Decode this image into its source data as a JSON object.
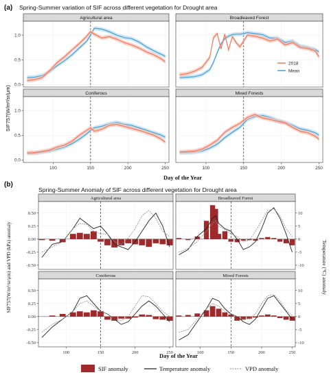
{
  "figure": {
    "panel_a_letter": "(a)",
    "panel_b_letter": "(b)"
  },
  "chart_data": [
    {
      "type": "line",
      "title": "Spring-Summer variation of SIF across different vegetation for Drought area",
      "xlabel": "Day of the Year",
      "ylabel": "SIF757(W/m²/sr/μm)",
      "xlim": [
        60,
        255
      ],
      "ylim": [
        -0.05,
        1.28
      ],
      "xticks": [
        100,
        150,
        200,
        250
      ],
      "yticks": [
        0.0,
        0.5,
        1.0
      ],
      "vline_x": 150,
      "grid": true,
      "legend": {
        "placement": "inside-right of Broadleaved Forest panel",
        "entries": [
          "2018",
          "Mean"
        ]
      },
      "colors": {
        "2018": "#ef7a5e",
        "Mean": "#4b9fd0",
        "band_2018": "#f7c2b4",
        "band_Mean": "#b8dcf0"
      },
      "facets": [
        {
          "name": "Agricultural area",
          "x": [
            65,
            75,
            85,
            95,
            105,
            115,
            125,
            135,
            145,
            150,
            155,
            165,
            175,
            185,
            195,
            205,
            215,
            225,
            235,
            245,
            250
          ],
          "series": [
            {
              "name": "2018",
              "values": [
                0.08,
                0.1,
                0.14,
                0.28,
                0.44,
                0.56,
                0.7,
                0.83,
                0.98,
                1.07,
                1.02,
                0.94,
                0.97,
                0.92,
                0.85,
                0.8,
                0.74,
                0.66,
                0.6,
                0.52,
                0.46
              ]
            },
            {
              "name": "Mean",
              "values": [
                0.14,
                0.15,
                0.18,
                0.26,
                0.38,
                0.48,
                0.6,
                0.74,
                0.88,
                1.0,
                1.14,
                1.12,
                1.07,
                1.0,
                0.95,
                0.93,
                0.86,
                0.76,
                0.68,
                0.61,
                0.57
              ]
            }
          ]
        },
        {
          "name": "Broadleaved Forest",
          "x": [
            65,
            75,
            85,
            95,
            105,
            110,
            115,
            120,
            125,
            130,
            135,
            140,
            145,
            150,
            155,
            165,
            175,
            185,
            195,
            205,
            215,
            225,
            235,
            245,
            250
          ],
          "series": [
            {
              "name": "2018",
              "values": [
                0.2,
                0.22,
                0.27,
                0.35,
                0.55,
                0.95,
                1.03,
                0.72,
                1.02,
                0.7,
                0.97,
                0.85,
                0.76,
                0.88,
                1.0,
                0.98,
                0.94,
                0.88,
                0.92,
                0.8,
                0.85,
                0.75,
                0.73,
                0.68,
                0.56
              ]
            },
            {
              "name": "Mean",
              "values": [
                0.14,
                0.15,
                0.16,
                0.2,
                0.3,
                0.45,
                0.65,
                0.82,
                0.93,
                0.98,
                1.01,
                1.02,
                1.02,
                1.03,
                1.05,
                1.03,
                1.01,
                0.94,
                0.94,
                0.85,
                0.88,
                0.78,
                0.75,
                0.71,
                0.66
              ]
            }
          ]
        },
        {
          "name": "Coniferous",
          "x": [
            65,
            75,
            85,
            95,
            105,
            115,
            125,
            135,
            145,
            150,
            155,
            165,
            175,
            185,
            195,
            205,
            215,
            225,
            235,
            245,
            250
          ],
          "series": [
            {
              "name": "2018",
              "values": [
                0.14,
                0.15,
                0.17,
                0.2,
                0.26,
                0.3,
                0.38,
                0.5,
                0.6,
                0.65,
                0.58,
                0.62,
                0.7,
                0.72,
                0.68,
                0.64,
                0.6,
                0.55,
                0.5,
                0.42,
                0.36
              ]
            },
            {
              "name": "Mean",
              "values": [
                0.14,
                0.14,
                0.16,
                0.18,
                0.22,
                0.26,
                0.33,
                0.42,
                0.53,
                0.6,
                0.65,
                0.68,
                0.73,
                0.76,
                0.72,
                0.7,
                0.65,
                0.6,
                0.55,
                0.5,
                0.46
              ]
            }
          ]
        },
        {
          "name": "Mixed Forests",
          "x": [
            65,
            75,
            85,
            95,
            105,
            115,
            125,
            135,
            145,
            150,
            155,
            165,
            175,
            185,
            195,
            205,
            215,
            225,
            235,
            245,
            250
          ],
          "series": [
            {
              "name": "2018",
              "values": [
                0.16,
                0.17,
                0.18,
                0.22,
                0.3,
                0.4,
                0.56,
                0.66,
                0.74,
                0.8,
                0.86,
                0.92,
                0.85,
                0.82,
                0.78,
                0.75,
                0.66,
                0.58,
                0.55,
                0.48,
                0.42
              ]
            },
            {
              "name": "Mean",
              "values": [
                0.15,
                0.15,
                0.16,
                0.18,
                0.24,
                0.32,
                0.45,
                0.56,
                0.66,
                0.74,
                0.82,
                0.88,
                0.9,
                0.86,
                0.8,
                0.76,
                0.7,
                0.63,
                0.6,
                0.55,
                0.5
              ]
            }
          ]
        }
      ]
    },
    {
      "type": "bar",
      "title": "Spring-Summer Anomaly of SIF across different vegetation for Drought area",
      "xlabel": "Day of the Year",
      "ylabel": "SIF757(W/m²/sr/μm) and VPD (kPa) anomaly",
      "y2label": "Temperature (°C) anomaly",
      "xlim": [
        60,
        255
      ],
      "ylim": [
        -0.58,
        0.72
      ],
      "y2lim": [
        -11.6,
        14.4
      ],
      "xticks": [
        100,
        150,
        200,
        250
      ],
      "yticks": [
        -0.5,
        -0.25,
        0.0,
        0.25,
        0.5
      ],
      "y2ticks": [
        -10,
        -5,
        0,
        5,
        10
      ],
      "vline_x": 150,
      "grid": true,
      "legend": {
        "placement": "bottom",
        "entries": [
          "SIF anomaly",
          "Temperature anomaly",
          "VPD anomaly"
        ]
      },
      "colors": {
        "SIF anomaly": "#9e2a2b",
        "Temperature anomaly": "#222222",
        "VPD anomaly": "#8a8a8a"
      },
      "facets": [
        {
          "name": "Agricultural area",
          "x": [
            65,
            80,
            95,
            110,
            120,
            130,
            140,
            150,
            160,
            170,
            180,
            190,
            200,
            210,
            220,
            230,
            240,
            250
          ],
          "series": [
            {
              "name": "SIF anomaly",
              "values": [
                -0.02,
                -0.03,
                -0.06,
                0.1,
                0.12,
                0.1,
                0.15,
                -0.05,
                -0.12,
                -0.16,
                -0.12,
                -0.08,
                -0.1,
                -0.12,
                -0.15,
                -0.08,
                -0.1,
                -0.12
              ]
            },
            {
              "name": "Temperature anomaly",
              "values": [
                -7,
                -2,
                -1,
                4,
                8,
                6,
                4,
                5,
                2,
                -2,
                -3,
                -4,
                -1,
                3,
                7,
                10,
                5,
                -3
              ]
            },
            {
              "name": "VPD anomaly",
              "values": [
                -0.25,
                -0.15,
                -0.05,
                0.2,
                0.3,
                0.28,
                0.15,
                0.1,
                0.1,
                -0.05,
                -0.1,
                0.02,
                0.2,
                0.45,
                0.55,
                0.4,
                0.15,
                0.05
              ]
            }
          ]
        },
        {
          "name": "Broadleaved Forest",
          "x": [
            65,
            80,
            95,
            110,
            120,
            125,
            130,
            140,
            150,
            160,
            170,
            180,
            190,
            200,
            210,
            220,
            230,
            240,
            250
          ],
          "series": [
            {
              "name": "SIF anomaly",
              "values": [
                0.02,
                -0.02,
                0.05,
                0.35,
                0.65,
                0.58,
                0.1,
                0.15,
                -0.05,
                -0.06,
                -0.03,
                -0.02,
                -0.03,
                0.02,
                0.04,
                0.02,
                -0.05,
                -0.08,
                -0.12
              ]
            },
            {
              "name": "Temperature anomaly",
              "values": [
                -6,
                -4,
                1,
                4,
                8,
                9,
                6,
                4,
                3,
                0,
                -4,
                -3,
                -1,
                4,
                10,
                12,
                8,
                2,
                -5
              ]
            },
            {
              "name": "VPD anomaly",
              "values": [
                -0.25,
                -0.18,
                -0.05,
                0.15,
                0.3,
                0.35,
                0.25,
                0.18,
                0.1,
                0.05,
                -0.05,
                -0.02,
                0.15,
                0.35,
                0.55,
                0.58,
                0.45,
                0.2,
                0.05
              ]
            }
          ]
        },
        {
          "name": "Coniferous",
          "x": [
            65,
            80,
            95,
            110,
            120,
            130,
            140,
            150,
            160,
            170,
            180,
            190,
            200,
            210,
            220,
            230,
            240,
            250
          ],
          "series": [
            {
              "name": "SIF anomaly",
              "values": [
                0.0,
                0.02,
                0.05,
                0.08,
                0.1,
                0.08,
                0.12,
                0.1,
                -0.06,
                -0.08,
                -0.04,
                -0.04,
                -0.02,
                0.04,
                0.03,
                -0.05,
                -0.06,
                -0.08
              ]
            },
            {
              "name": "Temperature anomaly",
              "values": [
                -8,
                -4,
                -1,
                2,
                7,
                8,
                5,
                2,
                1,
                -1,
                -3,
                -2,
                1,
                4,
                6,
                4,
                1,
                -2
              ]
            },
            {
              "name": "VPD anomaly",
              "values": [
                -0.3,
                -0.15,
                -0.05,
                0.1,
                0.25,
                0.3,
                0.2,
                0.1,
                0.05,
                -0.05,
                -0.08,
                0.0,
                0.2,
                0.4,
                0.38,
                0.25,
                0.1,
                0.0
              ]
            }
          ]
        },
        {
          "name": "Mixed Forests",
          "x": [
            65,
            80,
            95,
            110,
            120,
            130,
            140,
            150,
            160,
            170,
            180,
            190,
            200,
            210,
            220,
            230,
            240,
            250
          ],
          "series": [
            {
              "name": "SIF anomaly",
              "values": [
                0.02,
                0.03,
                0.06,
                0.12,
                0.2,
                0.15,
                0.08,
                0.04,
                -0.08,
                -0.06,
                -0.04,
                -0.02,
                0.02,
                0.04,
                0.02,
                -0.03,
                -0.06,
                -0.08
              ]
            },
            {
              "name": "Temperature anomaly",
              "values": [
                -9,
                -7,
                -2,
                3,
                7,
                6,
                3,
                1,
                0,
                -2,
                -3,
                -1,
                3,
                7,
                8,
                5,
                2,
                -1
              ]
            },
            {
              "name": "VPD anomaly",
              "values": [
                -0.3,
                -0.25,
                -0.05,
                0.15,
                0.25,
                0.2,
                0.1,
                0.05,
                0.0,
                -0.05,
                -0.05,
                0.05,
                0.25,
                0.4,
                0.42,
                0.3,
                0.12,
                0.02
              ]
            }
          ]
        }
      ]
    }
  ]
}
